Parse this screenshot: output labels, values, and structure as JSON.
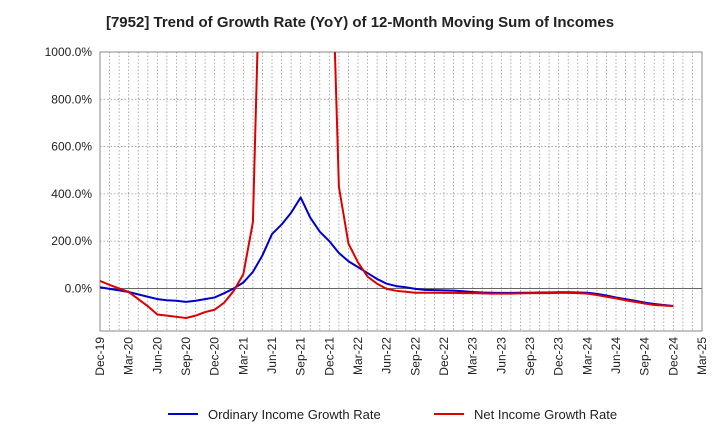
{
  "chart_data": {
    "type": "line",
    "title": "[7952]  Trend of Growth Rate (YoY) of 12-Month Moving Sum of Incomes",
    "xlabel": "",
    "ylabel": "",
    "ylim": [
      -180,
      1000
    ],
    "y_ticks": [
      0,
      200,
      400,
      600,
      800,
      1000
    ],
    "y_tick_labels": [
      "0.0%",
      "200.0%",
      "400.0%",
      "600.0%",
      "800.0%",
      "1000.0%"
    ],
    "x_tick_labels": [
      "Dec-19",
      "Mar-20",
      "Jun-20",
      "Sep-20",
      "Dec-20",
      "Mar-21",
      "Jun-21",
      "Sep-21",
      "Dec-21",
      "Mar-22",
      "Jun-22",
      "Sep-22",
      "Dec-22",
      "Mar-23",
      "Jun-23",
      "Sep-23",
      "Dec-23",
      "Mar-24",
      "Jun-24",
      "Sep-24",
      "Dec-24",
      "Mar-25"
    ],
    "x": [
      "Dec-19",
      "Jan-20",
      "Feb-20",
      "Mar-20",
      "Apr-20",
      "May-20",
      "Jun-20",
      "Jul-20",
      "Aug-20",
      "Sep-20",
      "Oct-20",
      "Nov-20",
      "Dec-20",
      "Jan-21",
      "Feb-21",
      "Mar-21",
      "Apr-21",
      "May-21",
      "Jun-21",
      "Jul-21",
      "Aug-21",
      "Sep-21",
      "Oct-21",
      "Nov-21",
      "Dec-21",
      "Jan-22",
      "Feb-22",
      "Mar-22",
      "Apr-22",
      "May-22",
      "Jun-22",
      "Jul-22",
      "Aug-22",
      "Sep-22",
      "Oct-22",
      "Nov-22",
      "Dec-22",
      "Jan-23",
      "Feb-23",
      "Mar-23",
      "Apr-23",
      "May-23",
      "Jun-23",
      "Jul-23",
      "Aug-23",
      "Sep-23",
      "Oct-23",
      "Nov-23",
      "Dec-23",
      "Jan-24",
      "Feb-24",
      "Mar-24",
      "Apr-24",
      "May-24",
      "Jun-24",
      "Jul-24",
      "Aug-24",
      "Sep-24",
      "Oct-24",
      "Nov-24",
      "Dec-24"
    ],
    "series": [
      {
        "name": "Ordinary Income Growth Rate",
        "color": "#0000cc",
        "values": [
          5,
          -2,
          -8,
          -15,
          -25,
          -35,
          -45,
          -50,
          -52,
          -57,
          -52,
          -45,
          -38,
          -20,
          0,
          25,
          70,
          140,
          230,
          270,
          320,
          385,
          300,
          240,
          200,
          150,
          115,
          90,
          65,
          40,
          20,
          10,
          5,
          -2,
          -6,
          -7,
          -8,
          -9,
          -12,
          -15,
          -17,
          -18,
          -19,
          -19,
          -18,
          -18,
          -17,
          -17,
          -16,
          -16,
          -17,
          -18,
          -23,
          -30,
          -38,
          -45,
          -52,
          -60,
          -66,
          -70,
          -74
        ]
      },
      {
        "name": "Net Income Growth Rate",
        "color": "#dd0000",
        "values": [
          32,
          15,
          0,
          -15,
          -45,
          -75,
          -110,
          -115,
          -120,
          -125,
          -115,
          -100,
          -90,
          -60,
          -10,
          60,
          280,
          1800,
          null,
          null,
          null,
          null,
          null,
          null,
          1800,
          430,
          190,
          110,
          50,
          20,
          -2,
          -10,
          -14,
          -18,
          -18,
          -18,
          -19,
          -19,
          -20,
          -20,
          -21,
          -22,
          -22,
          -22,
          -21,
          -20,
          -20,
          -20,
          -19,
          -19,
          -20,
          -22,
          -28,
          -35,
          -42,
          -50,
          -57,
          -64,
          -70,
          -72,
          -75
        ]
      }
    ]
  }
}
